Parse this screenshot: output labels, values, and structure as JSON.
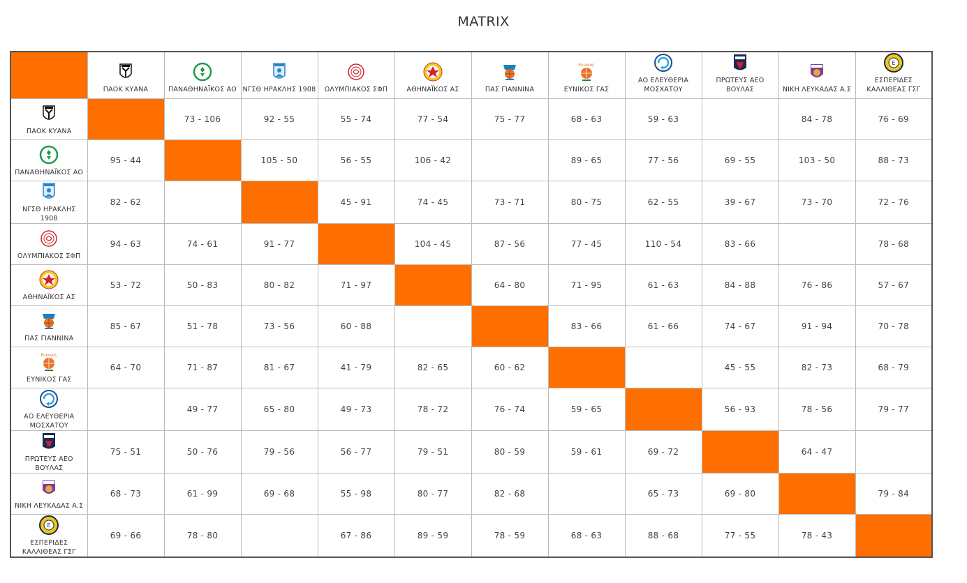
{
  "page": {
    "title": "MATRIX"
  },
  "teams": [
    {
      "name": "ΠΑΟΚ ΚΥΑΝΑ",
      "logo": "paok-logo-icon",
      "color": "#111111",
      "bg": "#ffffff"
    },
    {
      "name": "ΠΑΝΑΘΗΝΑΪΚΟΣ ΑΟ",
      "logo": "panathinaikos-logo-icon",
      "color": "#1e9b4a",
      "bg": "#ffffff"
    },
    {
      "name": "ΝΓΣΘ ΗΡΑΚΛΗΣ 1908",
      "logo": "iraklis-logo-icon",
      "color": "#2b83c6",
      "bg": "#d8ecfa"
    },
    {
      "name": "ΟΛΥΜΠΙΑΚΟΣ ΣΦΠ",
      "logo": "olympiacos-logo-icon",
      "color": "#d2222d",
      "bg": "#ffffff"
    },
    {
      "name": "ΑΘΗΝΑΪΚΟΣ ΑΣ",
      "logo": "athinaikos-logo-icon",
      "color": "#d61f26",
      "bg": "#f7c51e"
    },
    {
      "name": "ΠΑΣ ΓΙΑΝΝΙΝΑ",
      "logo": "pas-giannina-logo-icon",
      "color": "#1c7fbf",
      "bg": "#e8742a"
    },
    {
      "name": "ΕΥΝΙΚΟΣ ΓΑΣ",
      "logo": "eynikos-logo-icon",
      "color": "#e8742a",
      "bg": "#ffffff"
    },
    {
      "name": "ΑΟ ΕΛΕΥΘΕΡΙΑ ΜΟΣΧΑΤΟΥ",
      "logo": "eleftheria-logo-icon",
      "color": "#1f4e8c",
      "bg": "#ffffff"
    },
    {
      "name": "ΠΡΩΤΕΥΣ ΑΕΟ ΒΟΥΛΑΣ",
      "logo": "proteus-logo-icon",
      "color": "#c8202f",
      "bg": "#1b2a55"
    },
    {
      "name": "ΝΙΚΗ ΛΕΥΚΑΔΑΣ Α.Σ",
      "logo": "niki-lefkadas-logo-icon",
      "color": "#7a3fa0",
      "bg": "#f2a23a"
    },
    {
      "name": "ΕΣΠΕΡΙΔΕΣ ΚΑΛΛΙΘΕΑΣ ΓΣΓ",
      "logo": "esperides-logo-icon",
      "color": "#1b2a55",
      "bg": "#f4c614"
    }
  ],
  "matrix": [
    [
      "",
      "73 - 106",
      "92 - 55",
      "55 - 74",
      "77 - 54",
      "75 - 77",
      "68 - 63",
      "59 - 63",
      "",
      "84 - 78",
      "76 - 69"
    ],
    [
      "95 - 44",
      "",
      "105 - 50",
      "56 - 55",
      "106 - 42",
      "",
      "89 - 65",
      "77 - 56",
      "69 - 55",
      "103 - 50",
      "88 - 73"
    ],
    [
      "82 - 62",
      "",
      "",
      "45 - 91",
      "74 - 45",
      "73 - 71",
      "80 - 75",
      "62 - 55",
      "39 - 67",
      "73 - 70",
      "72 - 76"
    ],
    [
      "94 - 63",
      "74 - 61",
      "91 - 77",
      "",
      "104 - 45",
      "87 - 56",
      "77 - 45",
      "110 - 54",
      "83 - 66",
      "",
      "78 - 68"
    ],
    [
      "53 - 72",
      "50 - 83",
      "80 - 82",
      "71 - 97",
      "",
      "64 - 80",
      "71 - 95",
      "61 - 63",
      "84 - 88",
      "76 - 86",
      "57 - 67"
    ],
    [
      "85 - 67",
      "51 - 78",
      "73 - 56",
      "60 - 88",
      "",
      "",
      "83 - 66",
      "61 - 66",
      "74 - 67",
      "91 - 94",
      "70 - 78"
    ],
    [
      "64 - 70",
      "71 - 87",
      "81 - 67",
      "41 - 79",
      "82 - 65",
      "60 - 62",
      "",
      "",
      "45 - 55",
      "82 - 73",
      "68 - 79"
    ],
    [
      "",
      "49 - 77",
      "65 - 80",
      "49 - 73",
      "78 - 72",
      "76 - 74",
      "59 - 65",
      "",
      "56 - 93",
      "78 - 56",
      "79 - 77"
    ],
    [
      "75 - 51",
      "50 - 76",
      "79 - 56",
      "56 - 77",
      "79 - 51",
      "80 - 59",
      "59 - 61",
      "69 - 72",
      "",
      "64 - 47",
      ""
    ],
    [
      "68 - 73",
      "61 - 99",
      "69 - 68",
      "55 - 98",
      "80 - 77",
      "82 - 68",
      "",
      "65 - 73",
      "69 - 80",
      "",
      "79 - 84"
    ],
    [
      "69 - 66",
      "78 - 80",
      "",
      "67 - 86",
      "89 - 59",
      "78 - 59",
      "68 - 63",
      "88 - 68",
      "77 - 55",
      "78 - 43",
      ""
    ]
  ],
  "colors": {
    "diagonal": "#ff6f00",
    "border": "#555555",
    "grid": "#bbbbbb"
  }
}
